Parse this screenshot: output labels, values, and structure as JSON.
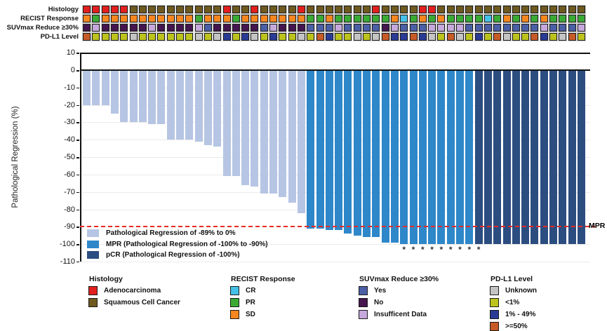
{
  "annotation_panel": {
    "rows": [
      {
        "key": "histology",
        "label": "Histology",
        "codes": [
          "A",
          "A",
          "A",
          "A",
          "A",
          "S",
          "S",
          "S",
          "S",
          "S",
          "S",
          "S",
          "S",
          "S",
          "S",
          "A",
          "S",
          "S",
          "A",
          "S",
          "S",
          "S",
          "S",
          "A",
          "S",
          "S",
          "S",
          "S",
          "S",
          "S",
          "S",
          "A",
          "S",
          "S",
          "S",
          "S",
          "A",
          "A",
          "S",
          "S",
          "S",
          "S",
          "S",
          "S",
          "S",
          "S",
          "S",
          "S",
          "S",
          "S",
          "S",
          "S",
          "S",
          "S"
        ]
      },
      {
        "key": "recist",
        "label": "RECIST Response",
        "codes": [
          "SD",
          "PR",
          "SD",
          "SD",
          "SD",
          "SD",
          "SD",
          "SD",
          "SD",
          "SD",
          "SD",
          "SD",
          "PR",
          "SD",
          "SD",
          "SD",
          "PR",
          "SD",
          "SD",
          "SD",
          "SD",
          "SD",
          "SD",
          "SD",
          "PR",
          "PR",
          "SD",
          "PR",
          "PR",
          "PR",
          "PR",
          "PR",
          "PR",
          "SD",
          "CR",
          "PR",
          "SD",
          "PR",
          "SD",
          "PR",
          "PR",
          "PR",
          "PR",
          "CR",
          "PR",
          "SD",
          "PR",
          "SD",
          "PR",
          "SD",
          "PR",
          "PR",
          "PR",
          "PR"
        ]
      },
      {
        "key": "suvmax",
        "label": "SUVmax Reduce ≥30%",
        "codes": [
          "N",
          "I",
          "N",
          "N",
          "N",
          "N",
          "N",
          "I",
          "N",
          "N",
          "N",
          "N",
          "I",
          "Y",
          "N",
          "N",
          "N",
          "N",
          "N",
          "Y",
          "I",
          "N",
          "N",
          "N",
          "Y",
          "Y",
          "Y",
          "I",
          "Y",
          "Y",
          "Y",
          "Y",
          "N",
          "I",
          "Y",
          "Y",
          "Y",
          "I",
          "I",
          "I",
          "I",
          "Y",
          "Y",
          "Y",
          "Y",
          "Y",
          "Y",
          "Y",
          "Y",
          "I",
          "Y",
          "Y",
          "Y",
          "I"
        ]
      },
      {
        "key": "pdl1",
        "label": "PD-L1 Level",
        "codes": [
          "H",
          "L",
          "L",
          "L",
          "L",
          "U",
          "L",
          "L",
          "L",
          "L",
          "L",
          "L",
          "U",
          "L",
          "U",
          "M",
          "L",
          "M",
          "U",
          "L",
          "M",
          "L",
          "L",
          "U",
          "L",
          "H",
          "M",
          "L",
          "L",
          "U",
          "L",
          "U",
          "H",
          "M",
          "M",
          "H",
          "M",
          "U",
          "L",
          "H",
          "U",
          "L",
          "M",
          "L",
          "H",
          "U",
          "L",
          "L",
          "H",
          "M",
          "L",
          "U",
          "H",
          "L"
        ]
      }
    ],
    "color_map": {
      "A": "#e21f1f",
      "S": "#6e591f",
      "SD": "#f6861f",
      "PR": "#3aaa35",
      "CR": "#45c1e8",
      "Y": "#4a5fa5",
      "N": "#44154e",
      "I": "#c5a8dc",
      "U": "#c4c4c4",
      "L": "#bcc31d",
      "M": "#2a3b96",
      "H": "#c75b28"
    }
  },
  "chart_data": {
    "type": "bar",
    "subtype": "waterfall",
    "title": "",
    "xlabel": "",
    "ylabel": "Pathological Regression (%)",
    "ylim": [
      -110,
      10
    ],
    "yticks": [
      10,
      0,
      -10,
      -20,
      -30,
      -40,
      -50,
      -60,
      -70,
      -80,
      -90,
      -100,
      -110
    ],
    "grid": "horizontal",
    "n_patients": 54,
    "values": [
      -20,
      -20,
      -20,
      -25,
      -30,
      -30,
      -30,
      -31,
      -31,
      -40,
      -40,
      -40,
      -41,
      -43,
      -44,
      -61,
      -61,
      -66,
      -67,
      -71,
      -71,
      -73,
      -76,
      -82,
      -91,
      -91,
      -92,
      -92,
      -94,
      -95,
      -96,
      -96,
      -99,
      -99,
      -100,
      -100,
      -100,
      -100,
      -100,
      -100,
      -100,
      -100,
      -100,
      -100,
      -100,
      -100,
      -100,
      -100,
      -100,
      -100,
      -100,
      -100,
      -100,
      -100
    ],
    "bar_groups": [
      "reg",
      "reg",
      "reg",
      "reg",
      "reg",
      "reg",
      "reg",
      "reg",
      "reg",
      "reg",
      "reg",
      "reg",
      "reg",
      "reg",
      "reg",
      "reg",
      "reg",
      "reg",
      "reg",
      "reg",
      "reg",
      "reg",
      "reg",
      "reg",
      "mpr",
      "mpr",
      "mpr",
      "mpr",
      "mpr",
      "mpr",
      "mpr",
      "mpr",
      "mpr",
      "mpr",
      "mpr",
      "mpr",
      "mpr",
      "mpr",
      "mpr",
      "mpr",
      "mpr",
      "mpr",
      "pcr",
      "pcr",
      "pcr",
      "pcr",
      "pcr",
      "pcr",
      "pcr",
      "pcr",
      "pcr",
      "pcr",
      "pcr",
      "pcr"
    ],
    "group_colors": {
      "reg": "#b6c5e3",
      "mpr": "#2e87c9",
      "pcr": "#2c4d80"
    },
    "reference_line": {
      "value": -90,
      "label": "MPR",
      "color": "#e82b25",
      "style": "dashed"
    },
    "asterisk_symbol": "*",
    "asterisk_bar_indices": [
      35,
      36,
      37,
      38,
      39,
      40,
      41,
      42,
      43
    ],
    "legend_position": "inside-bottom-left",
    "legend": [
      {
        "group": "reg",
        "label": "Pathological Regression of -89% to 0%"
      },
      {
        "group": "mpr",
        "label": "MPR (Pathological Regression of -100% to -90%)"
      },
      {
        "group": "pcr",
        "label": "pCR (Pathological Regression of -100%)"
      }
    ]
  },
  "bottom_legend": {
    "groups": [
      {
        "title": "Histology",
        "items": [
          {
            "label": "Adenocarcinoma",
            "color": "#e21f1f"
          },
          {
            "label": "Squamous Cell Cancer",
            "color": "#6e591f"
          }
        ]
      },
      {
        "title": "RECIST Response",
        "items": [
          {
            "label": "CR",
            "color": "#45c1e8"
          },
          {
            "label": "PR",
            "color": "#3aaa35"
          },
          {
            "label": "SD",
            "color": "#f6861f"
          }
        ]
      },
      {
        "title": "SUVmax Reduce ≥30%",
        "items": [
          {
            "label": "Yes",
            "color": "#4a5fa5"
          },
          {
            "label": "No",
            "color": "#44154e"
          },
          {
            "label": "Insufficent Data",
            "color": "#c5a8dc"
          }
        ]
      },
      {
        "title": "PD-L1 Level",
        "items": [
          {
            "label": "Unknown",
            "color": "#c4c4c4"
          },
          {
            "label": "<1%",
            "color": "#bcc31d"
          },
          {
            "label": "1% - 49%",
            "color": "#2a3b96"
          },
          {
            "label": ">=50%",
            "color": "#c75b28"
          }
        ]
      }
    ]
  }
}
